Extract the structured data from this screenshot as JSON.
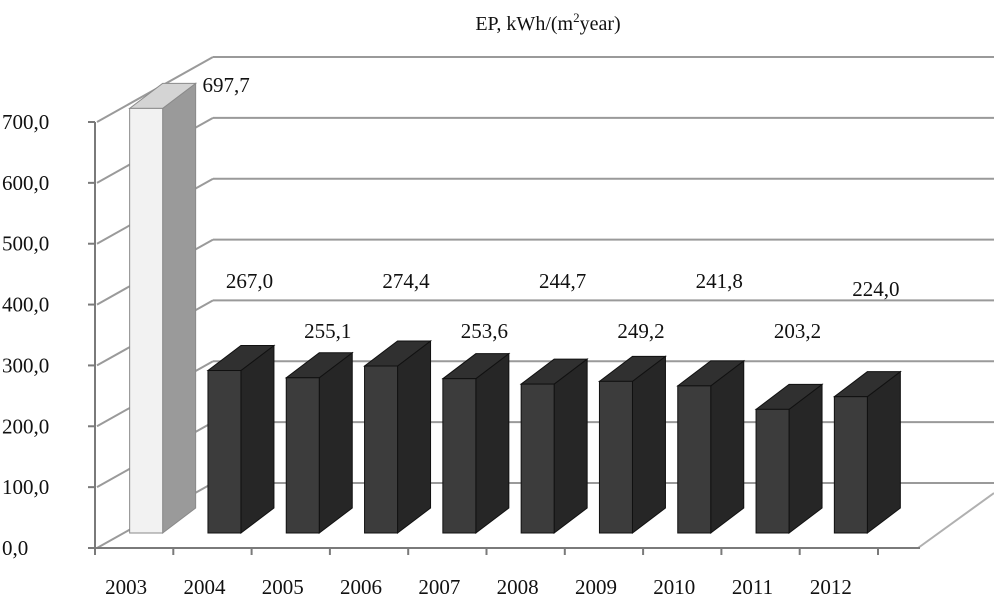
{
  "chart_data": {
    "type": "bar",
    "title": "EP, kWh/(m",
    "title_sup": "2",
    "title_tail": "year)",
    "categories": [
      "2003",
      "2004",
      "2005",
      "2006",
      "2007",
      "2008",
      "2009",
      "2010",
      "2011",
      "2012"
    ],
    "values": [
      697.7,
      267.0,
      255.1,
      274.4,
      253.6,
      244.7,
      249.2,
      241.8,
      203.2,
      224.0
    ],
    "value_labels": [
      "697,7",
      "267,0",
      "255,1",
      "274,4",
      "253,6",
      "244,7",
      "249,2",
      "241,8",
      "203,2",
      "224,0"
    ],
    "y_ticks": [
      "0,0",
      "100,0",
      "200,0",
      "300,0",
      "400,0",
      "500,0",
      "600,0",
      "700,0"
    ],
    "ylim": [
      0,
      700
    ],
    "grid": true,
    "style": "3d-column",
    "colors": {
      "highlight_front": "#f2f2f2",
      "highlight_side": "#9a9a9a",
      "highlight_top": "#d4d4d4",
      "bar_front": "#3c3c3c",
      "bar_side": "#262626",
      "bar_top": "#303030",
      "grid": "#9a9a9a",
      "floor": "#b0b0b0"
    }
  }
}
